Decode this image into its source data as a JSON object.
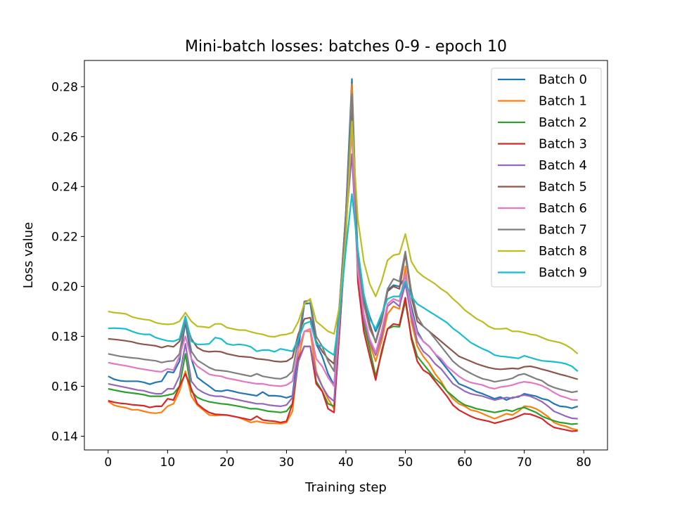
{
  "chart_data": {
    "type": "line",
    "title": "Mini-batch losses: batches 0-9 - epoch 10",
    "xlabel": "Training step",
    "ylabel": "Loss value",
    "xlim": [
      -4,
      84
    ],
    "ylim": [
      0.1345,
      0.2905
    ],
    "xticks": [
      0,
      10,
      20,
      30,
      40,
      50,
      60,
      70,
      80
    ],
    "xtick_labels": [
      "0",
      "10",
      "20",
      "30",
      "40",
      "50",
      "60",
      "70",
      "80"
    ],
    "yticks": [
      0.14,
      0.16,
      0.18,
      0.2,
      0.22,
      0.24,
      0.26,
      0.28
    ],
    "ytick_labels": [
      "0.14",
      "0.16",
      "0.18",
      "0.20",
      "0.22",
      "0.24",
      "0.26",
      "0.28"
    ],
    "grid": false,
    "legend_position": "top-right",
    "x": [
      0,
      1,
      2,
      3,
      4,
      5,
      6,
      7,
      8,
      9,
      10,
      11,
      12,
      13,
      14,
      15,
      16,
      17,
      18,
      19,
      20,
      21,
      22,
      23,
      24,
      25,
      26,
      27,
      28,
      29,
      30,
      31,
      32,
      33,
      34,
      35,
      36,
      37,
      38,
      39,
      40,
      41,
      42,
      43,
      44,
      45,
      46,
      47,
      48,
      49,
      50,
      51,
      52,
      53,
      54,
      55,
      56,
      57,
      58,
      59,
      60,
      61,
      62,
      63,
      64,
      65,
      66,
      67,
      68,
      69,
      70,
      71,
      72,
      73,
      74,
      75,
      76,
      77,
      78,
      79
    ],
    "series": [
      {
        "name": "Batch 0",
        "color": "#1f77b4",
        "values": [
          0.164,
          0.1628,
          0.1622,
          0.162,
          0.162,
          0.162,
          0.1616,
          0.1608,
          0.1616,
          0.162,
          0.1658,
          0.1655,
          0.17,
          0.1857,
          0.171,
          0.1636,
          0.1617,
          0.16,
          0.1582,
          0.158,
          0.1585,
          0.158,
          0.1574,
          0.157,
          0.1566,
          0.1562,
          0.1577,
          0.1562,
          0.1562,
          0.156,
          0.1554,
          0.1562,
          0.1752,
          0.193,
          0.1933,
          0.177,
          0.172,
          0.165,
          0.1605,
          0.19,
          0.23,
          0.2831,
          0.21,
          0.196,
          0.188,
          0.182,
          0.1876,
          0.1985,
          0.2005,
          0.2,
          0.204,
          0.192,
          0.182,
          0.178,
          0.176,
          0.173,
          0.17,
          0.167,
          0.164,
          0.161,
          0.16,
          0.159,
          0.1578,
          0.157,
          0.156,
          0.155,
          0.1557,
          0.1545,
          0.1555,
          0.1557,
          0.157,
          0.1565,
          0.156,
          0.155,
          0.1545,
          0.153,
          0.152,
          0.1518,
          0.1512,
          0.152
        ]
      },
      {
        "name": "Batch 1",
        "color": "#ff7f0e",
        "values": [
          0.154,
          0.1524,
          0.1518,
          0.1514,
          0.1506,
          0.1506,
          0.15,
          0.1494,
          0.1492,
          0.1496,
          0.152,
          0.153,
          0.158,
          0.166,
          0.156,
          0.1525,
          0.1505,
          0.1485,
          0.1483,
          0.1485,
          0.1484,
          0.148,
          0.1475,
          0.1465,
          0.1455,
          0.146,
          0.1455,
          0.1452,
          0.1452,
          0.145,
          0.1455,
          0.15,
          0.171,
          0.182,
          0.182,
          0.166,
          0.16,
          0.155,
          0.151,
          0.185,
          0.22,
          0.281,
          0.206,
          0.188,
          0.177,
          0.17,
          0.178,
          0.189,
          0.192,
          0.191,
          0.208,
          0.186,
          0.176,
          0.172,
          0.169,
          0.165,
          0.162,
          0.158,
          0.155,
          0.153,
          0.152,
          0.1505,
          0.15,
          0.149,
          0.148,
          0.147,
          0.148,
          0.149,
          0.1485,
          0.15,
          0.152,
          0.1518,
          0.151,
          0.1495,
          0.1478,
          0.1455,
          0.1445,
          0.144,
          0.143,
          0.1425
        ]
      },
      {
        "name": "Batch 2",
        "color": "#2ca02c",
        "values": [
          0.159,
          0.1585,
          0.158,
          0.1576,
          0.1573,
          0.157,
          0.1566,
          0.156,
          0.156,
          0.156,
          0.1565,
          0.157,
          0.16,
          0.173,
          0.158,
          0.1555,
          0.1545,
          0.1538,
          0.1534,
          0.153,
          0.1528,
          0.1524,
          0.152,
          0.1515,
          0.151,
          0.151,
          0.1505,
          0.15,
          0.1498,
          0.1495,
          0.15,
          0.153,
          0.17,
          0.176,
          0.176,
          0.162,
          0.158,
          0.153,
          0.152,
          0.184,
          0.225,
          0.275,
          0.204,
          0.185,
          0.175,
          0.164,
          0.173,
          0.183,
          0.184,
          0.1838,
          0.194,
          0.18,
          0.172,
          0.169,
          0.166,
          0.163,
          0.161,
          0.158,
          0.156,
          0.154,
          0.1525,
          0.1518,
          0.151,
          0.1505,
          0.15,
          0.1495,
          0.15,
          0.1505,
          0.15,
          0.151,
          0.1515,
          0.1505,
          0.1495,
          0.148,
          0.147,
          0.1462,
          0.1455,
          0.1452,
          0.1448,
          0.145
        ]
      },
      {
        "name": "Batch 3",
        "color": "#d62728",
        "values": [
          0.1542,
          0.1536,
          0.1532,
          0.153,
          0.1526,
          0.1524,
          0.1522,
          0.1515,
          0.152,
          0.152,
          0.155,
          0.1545,
          0.16,
          0.165,
          0.159,
          0.153,
          0.151,
          0.1495,
          0.1488,
          0.1486,
          0.1485,
          0.148,
          0.1475,
          0.147,
          0.1465,
          0.148,
          0.1465,
          0.1462,
          0.146,
          0.1455,
          0.146,
          0.153,
          0.171,
          0.176,
          0.176,
          0.161,
          0.158,
          0.151,
          0.1495,
          0.185,
          0.22,
          0.276,
          0.202,
          0.182,
          0.172,
          0.1625,
          0.174,
          0.183,
          0.185,
          0.1845,
          0.1955,
          0.179,
          0.17,
          0.1665,
          0.165,
          0.162,
          0.159,
          0.156,
          0.1525,
          0.1505,
          0.1492,
          0.148,
          0.147,
          0.1465,
          0.146,
          0.1452,
          0.1458,
          0.1465,
          0.147,
          0.148,
          0.149,
          0.1488,
          0.148,
          0.147,
          0.145,
          0.1435,
          0.143,
          0.1425,
          0.142,
          0.1422
        ]
      },
      {
        "name": "Batch 4",
        "color": "#9467bd",
        "values": [
          0.161,
          0.1605,
          0.16,
          0.1595,
          0.159,
          0.1585,
          0.1582,
          0.1575,
          0.157,
          0.157,
          0.159,
          0.159,
          0.164,
          0.177,
          0.162,
          0.159,
          0.1575,
          0.1565,
          0.156,
          0.156,
          0.1555,
          0.155,
          0.1545,
          0.154,
          0.1535,
          0.153,
          0.153,
          0.1525,
          0.1522,
          0.152,
          0.1525,
          0.1555,
          0.17,
          0.176,
          0.176,
          0.165,
          0.16,
          0.156,
          0.154,
          0.188,
          0.225,
          0.253,
          0.206,
          0.187,
          0.178,
          0.1725,
          0.18,
          0.192,
          0.194,
          0.192,
          0.201,
          0.188,
          0.178,
          0.174,
          0.172,
          0.169,
          0.167,
          0.164,
          0.161,
          0.1595,
          0.158,
          0.157,
          0.1565,
          0.156,
          0.1552,
          0.1545,
          0.155,
          0.1555,
          0.1552,
          0.156,
          0.1565,
          0.156,
          0.155,
          0.1538,
          0.152,
          0.15,
          0.149,
          0.148,
          0.1472,
          0.147
        ]
      },
      {
        "name": "Batch 5",
        "color": "#8c564b",
        "values": [
          0.179,
          0.1788,
          0.1785,
          0.1782,
          0.1778,
          0.1772,
          0.1768,
          0.1765,
          0.1762,
          0.1755,
          0.1762,
          0.1758,
          0.178,
          0.186,
          0.179,
          0.1755,
          0.1742,
          0.1738,
          0.174,
          0.1738,
          0.173,
          0.1725,
          0.172,
          0.1718,
          0.1716,
          0.171,
          0.1708,
          0.1705,
          0.17,
          0.1698,
          0.17,
          0.1715,
          0.181,
          0.187,
          0.1875,
          0.178,
          0.174,
          0.171,
          0.169,
          0.195,
          0.23,
          0.274,
          0.21,
          0.194,
          0.185,
          0.1775,
          0.186,
          0.198,
          0.2,
          0.199,
          0.213,
          0.196,
          0.186,
          0.184,
          0.182,
          0.18,
          0.178,
          0.176,
          0.174,
          0.172,
          0.171,
          0.17,
          0.169,
          0.1682,
          0.1675,
          0.167,
          0.1668,
          0.167,
          0.1672,
          0.167,
          0.1678,
          0.168,
          0.1675,
          0.1668,
          0.1662,
          0.1655,
          0.1648,
          0.1642,
          0.1635,
          0.1628
        ]
      },
      {
        "name": "Batch 6",
        "color": "#e377c2",
        "values": [
          0.1695,
          0.169,
          0.1686,
          0.1682,
          0.1677,
          0.1672,
          0.1668,
          0.1664,
          0.166,
          0.1658,
          0.167,
          0.1665,
          0.172,
          0.18,
          0.171,
          0.168,
          0.1664,
          0.1648,
          0.1643,
          0.164,
          0.1632,
          0.1628,
          0.1623,
          0.1618,
          0.1614,
          0.161,
          0.161,
          0.1605,
          0.1602,
          0.16,
          0.1605,
          0.162,
          0.175,
          0.182,
          0.183,
          0.171,
          0.168,
          0.1635,
          0.16,
          0.19,
          0.23,
          0.262,
          0.207,
          0.189,
          0.179,
          0.1735,
          0.182,
          0.193,
          0.195,
          0.194,
          0.205,
          0.19,
          0.181,
          0.178,
          0.176,
          0.173,
          0.171,
          0.168,
          0.166,
          0.164,
          0.1625,
          0.1615,
          0.161,
          0.1605,
          0.1595,
          0.159,
          0.1597,
          0.16,
          0.1605,
          0.1613,
          0.1618,
          0.1615,
          0.161,
          0.1602,
          0.159,
          0.1575,
          0.1562,
          0.1555,
          0.1546,
          0.1545
        ]
      },
      {
        "name": "Batch 7",
        "color": "#7f7f7f",
        "values": [
          0.173,
          0.1725,
          0.172,
          0.1717,
          0.1714,
          0.1712,
          0.1708,
          0.1705,
          0.1702,
          0.1695,
          0.17,
          0.1702,
          0.173,
          0.187,
          0.174,
          0.1705,
          0.169,
          0.1675,
          0.1665,
          0.1663,
          0.166,
          0.1655,
          0.165,
          0.1645,
          0.164,
          0.165,
          0.164,
          0.1636,
          0.1632,
          0.163,
          0.1638,
          0.166,
          0.179,
          0.194,
          0.1945,
          0.18,
          0.176,
          0.17,
          0.166,
          0.195,
          0.23,
          0.277,
          0.212,
          0.193,
          0.183,
          0.178,
          0.187,
          0.199,
          0.203,
          0.202,
          0.214,
          0.198,
          0.188,
          0.184,
          0.182,
          0.179,
          0.176,
          0.173,
          0.17,
          0.168,
          0.1665,
          0.1652,
          0.164,
          0.163,
          0.1625,
          0.1618,
          0.1622,
          0.1626,
          0.1632,
          0.1645,
          0.165,
          0.164,
          0.163,
          0.1622,
          0.1605,
          0.1595,
          0.1588,
          0.1582,
          0.1576,
          0.158
        ]
      },
      {
        "name": "Batch 8",
        "color": "#bcbd22",
        "values": [
          0.19,
          0.1895,
          0.1893,
          0.189,
          0.1878,
          0.1872,
          0.1868,
          0.1865,
          0.1855,
          0.185,
          0.1848,
          0.185,
          0.186,
          0.1895,
          0.186,
          0.184,
          0.1838,
          0.1835,
          0.185,
          0.185,
          0.1835,
          0.183,
          0.1825,
          0.1825,
          0.1818,
          0.1812,
          0.1808,
          0.18,
          0.1798,
          0.1805,
          0.1808,
          0.1815,
          0.186,
          0.193,
          0.195,
          0.186,
          0.184,
          0.182,
          0.181,
          0.193,
          0.22,
          0.266,
          0.227,
          0.21,
          0.201,
          0.196,
          0.202,
          0.2105,
          0.2125,
          0.213,
          0.221,
          0.21,
          0.206,
          0.204,
          0.2025,
          0.201,
          0.199,
          0.1975,
          0.195,
          0.193,
          0.1905,
          0.1888,
          0.187,
          0.1858,
          0.184,
          0.183,
          0.183,
          0.1832,
          0.182,
          0.182,
          0.1815,
          0.1808,
          0.1805,
          0.1795,
          0.1785,
          0.178,
          0.1775,
          0.1765,
          0.175,
          0.173
        ]
      },
      {
        "name": "Batch 9",
        "color": "#17becf",
        "values": [
          0.1832,
          0.1833,
          0.1832,
          0.183,
          0.182,
          0.1812,
          0.1808,
          0.1808,
          0.1795,
          0.1788,
          0.1782,
          0.178,
          0.179,
          0.188,
          0.178,
          0.1768,
          0.1768,
          0.177,
          0.1795,
          0.179,
          0.177,
          0.1765,
          0.1768,
          0.1765,
          0.1758,
          0.174,
          0.1745,
          0.1745,
          0.1738,
          0.175,
          0.1745,
          0.174,
          0.179,
          0.185,
          0.186,
          0.177,
          0.176,
          0.174,
          0.1725,
          0.19,
          0.215,
          0.237,
          0.215,
          0.197,
          0.187,
          0.183,
          0.189,
          0.195,
          0.196,
          0.196,
          0.202,
          0.196,
          0.193,
          0.1915,
          0.19,
          0.1885,
          0.187,
          0.1855,
          0.1832,
          0.1815,
          0.1795,
          0.1775,
          0.1762,
          0.175,
          0.174,
          0.1725,
          0.172,
          0.1718,
          0.1715,
          0.1712,
          0.1722,
          0.1715,
          0.1708,
          0.1702,
          0.17,
          0.1698,
          0.1695,
          0.169,
          0.168,
          0.166
        ]
      }
    ]
  }
}
